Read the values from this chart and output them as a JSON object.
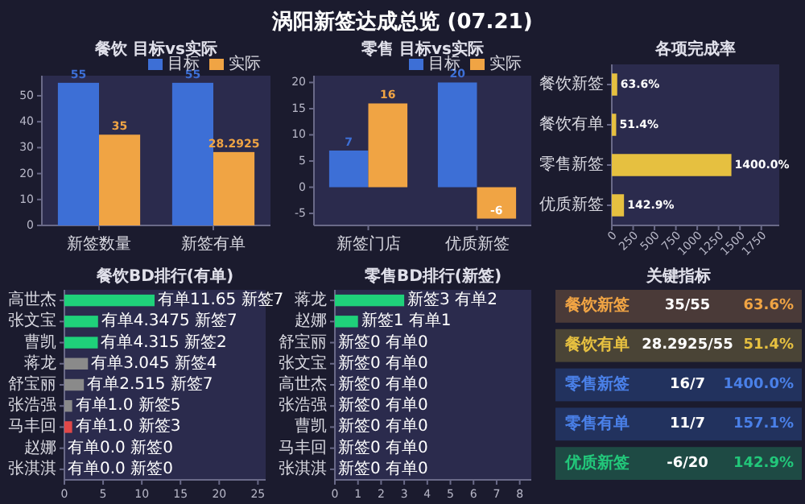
{
  "chart_data": [
    {
      "type": "other",
      "title": "涡阳新签达成总览 (07.21)"
    },
    {
      "type": "bar",
      "title": "餐饮 目标vs实际",
      "categories": [
        "新签数量",
        "新签有单"
      ],
      "series": [
        {
          "name": "目标",
          "color": "#3d6fd6",
          "values": [
            55,
            55
          ]
        },
        {
          "name": "实际",
          "color": "#f0a444",
          "values": [
            35,
            28.2925
          ]
        }
      ],
      "ylim": [
        0,
        57.75
      ],
      "yticks": [
        0,
        10,
        20,
        30,
        40,
        50
      ],
      "data_labels": true,
      "legend": "top right"
    },
    {
      "type": "bar",
      "title": "零售 目标vs实际",
      "categories": [
        "新签门店",
        "优质新签"
      ],
      "series": [
        {
          "name": "目标",
          "color": "#3d6fd6",
          "values": [
            7,
            20
          ]
        },
        {
          "name": "实际",
          "color": "#f0a444",
          "values": [
            16,
            -6
          ]
        }
      ],
      "ylim": [
        -7.3,
        21.3
      ],
      "yticks": [
        -5,
        0,
        5,
        10,
        15,
        20
      ],
      "data_labels": true,
      "legend": "top right"
    },
    {
      "type": "bar",
      "orientation": "horizontal",
      "title": "各项完成率",
      "categories": [
        "餐饮新签",
        "餐饮有单",
        "零售新签",
        "优质新签"
      ],
      "values": [
        63.6,
        51.4,
        1400.0,
        142.9
      ],
      "color": "#e6c040",
      "value_labels": [
        "63.6%",
        "51.4%",
        "1400.0%",
        "142.9%"
      ],
      "xlim": [
        0,
        1960
      ],
      "xticks": [
        0,
        250,
        500,
        750,
        1000,
        1250,
        1500,
        1750
      ]
    },
    {
      "type": "bar",
      "orientation": "horizontal",
      "title": "餐饮BD排行(有单)",
      "categories": [
        "高世杰",
        "张文宝",
        "曹凯",
        "蒋龙",
        "舒宝丽",
        "张浩强",
        "马丰回",
        "赵娜",
        "张淇淇"
      ],
      "values": [
        11.65,
        4.3475,
        4.315,
        3.045,
        2.515,
        1.0,
        1.0,
        0,
        0
      ],
      "colors": [
        "#1fd17a",
        "#1fd17a",
        "#1fd17a",
        "#8a8a8a",
        "#8a8a8a",
        "#8a8a8a",
        "#e04848",
        "#e04848",
        "#e04848"
      ],
      "value_labels": [
        "有单11.65 新签7",
        "有单4.3475 新签7",
        "有单4.315 新签2",
        "有单3.045 新签4",
        "有单2.515 新签7",
        "有单1.0 新签5",
        "有单1.0 新签3",
        "有单0.0 新签0",
        "有单0.0 新签0"
      ],
      "xlim": [
        0,
        26
      ],
      "xticks": [
        0,
        5,
        10,
        15,
        20,
        25
      ]
    },
    {
      "type": "bar",
      "orientation": "horizontal",
      "title": "零售BD排行(新签)",
      "categories": [
        "蒋龙",
        "赵娜",
        "舒宝丽",
        "张文宝",
        "高世杰",
        "张浩强",
        "曹凯",
        "马丰回",
        "张淇淇"
      ],
      "values": [
        3,
        1,
        0,
        0,
        0,
        0,
        0,
        0,
        0
      ],
      "colors": [
        "#1fd17a",
        "#1fd17a",
        "#8a8a8a",
        "#8a8a8a",
        "#8a8a8a",
        "#8a8a8a",
        "#8a8a8a",
        "#8a8a8a",
        "#8a8a8a"
      ],
      "value_labels": [
        "新签3 有单2",
        "新签1 有单1",
        "新签0 有单0",
        "新签0 有单0",
        "新签0 有单0",
        "新签0 有单0",
        "新签0 有单0",
        "新签0 有单0",
        "新签0 有单0"
      ],
      "xlim": [
        0,
        8.5
      ],
      "xticks": [
        0,
        1,
        2,
        3,
        4,
        5,
        6,
        7,
        8
      ]
    },
    {
      "type": "other",
      "title": "关键指标",
      "annotations": [
        "餐饮新签",
        "35/55",
        "63.6%",
        "餐饮有单",
        "28.2925/55",
        "51.4%",
        "零售新签",
        "16/7",
        "1400.0%",
        "零售有单",
        "11/7",
        "157.1%",
        "优质新签",
        "-6/20",
        "142.9%"
      ]
    }
  ]
}
